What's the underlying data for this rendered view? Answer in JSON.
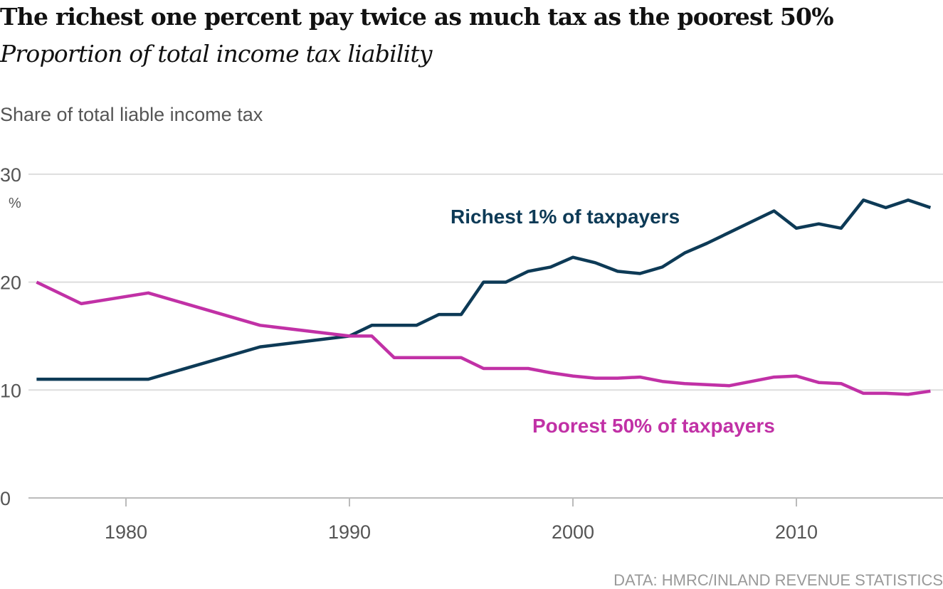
{
  "chart_data": {
    "type": "line",
    "title": "The richest one percent pay twice as much tax as the poorest 50%",
    "subtitle": "Proportion of total income tax liability",
    "ylabel": "Share of total liable income tax",
    "yunit": "%",
    "source": "DATA: HMRC/INLAND REVENUE STATISTICS",
    "xlim": [
      1976,
      2016
    ],
    "ylim": [
      0,
      30
    ],
    "xticks": [
      1980,
      1990,
      2000,
      2010
    ],
    "yticks": [
      0,
      10,
      20,
      30
    ],
    "grid": "horizontal",
    "series": [
      {
        "name": "Richest 1% of taxpayers",
        "color": "#0d3a56",
        "x": [
          1976,
          1981,
          1986,
          1990,
          1991,
          1993,
          1994,
          1995,
          1996,
          1997,
          1998,
          1999,
          2000,
          2001,
          2002,
          2003,
          2004,
          2005,
          2006,
          2007,
          2008,
          2009,
          2010,
          2011,
          2012,
          2013,
          2014,
          2015,
          2016
        ],
        "values": [
          11,
          11,
          14,
          15,
          16,
          16,
          17,
          17,
          20,
          20,
          21,
          21.4,
          22.3,
          21.8,
          21,
          20.8,
          21.4,
          22.7,
          23.6,
          24.6,
          25.6,
          26.6,
          25,
          25.4,
          25,
          27.6,
          26.9,
          27.6,
          26.9
        ]
      },
      {
        "name": "Poorest 50% of taxpayers",
        "color": "#c131a6",
        "x": [
          1976,
          1978,
          1981,
          1986,
          1990,
          1991,
          1992,
          1995,
          1996,
          1998,
          1999,
          2000,
          2001,
          2002,
          2003,
          2004,
          2005,
          2007,
          2009,
          2010,
          2011,
          2012,
          2013,
          2014,
          2015,
          2016
        ],
        "values": [
          20,
          18,
          19,
          16,
          15,
          15,
          13,
          13,
          12,
          12,
          11.6,
          11.3,
          11.1,
          11.1,
          11.2,
          10.8,
          10.6,
          10.4,
          11.2,
          11.3,
          10.7,
          10.6,
          9.7,
          9.7,
          9.6,
          9.9
        ]
      }
    ]
  }
}
